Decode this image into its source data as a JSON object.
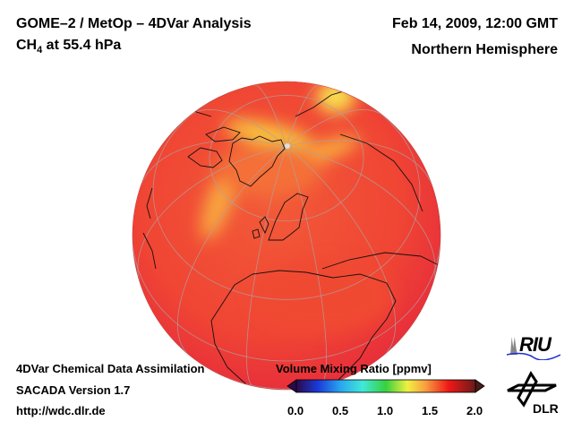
{
  "header": {
    "title": "GOME–2 / MetOp – 4DVar Analysis",
    "species": "CH",
    "species_sub": "4",
    "level": " at 55.4 hPa",
    "datetime": "Feb 14, 2009, 12:00 GMT",
    "region": "Northern Hemisphere"
  },
  "footer": {
    "line1": "4DVar Chemical Data Assimilation",
    "line2": "SACADA Version 1.7",
    "line3": "http://wdc.dlr.de"
  },
  "colorbar": {
    "title": "Volume Mixing Ratio [ppmv]",
    "ticks": [
      "0.0",
      "0.5",
      "1.0",
      "1.5",
      "2.0"
    ],
    "range": [
      0.0,
      2.0
    ],
    "colors": [
      "#2a0a4a",
      "#1a3ad8",
      "#2aa8f0",
      "#40e8d8",
      "#38d040",
      "#f0f040",
      "#f8a040",
      "#f01818",
      "#6a1a1a"
    ]
  },
  "logos": {
    "riu": "RIU",
    "dlr": "DLR"
  },
  "map": {
    "field_color": "#f03a30",
    "high_color": "#f8e040"
  }
}
